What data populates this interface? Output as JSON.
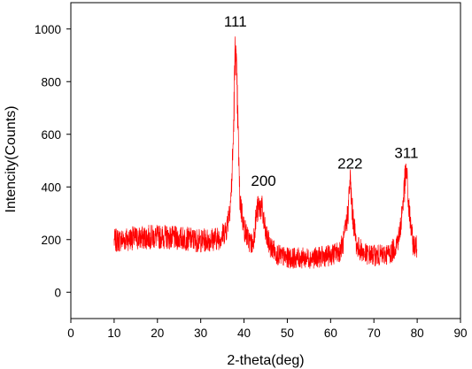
{
  "chart_data": {
    "type": "line",
    "xlabel": "2-theta(deg)",
    "ylabel": "Intencity(Counts)",
    "xlim": [
      0,
      90
    ],
    "ylim": [
      -100,
      1100
    ],
    "x_ticks": [
      0,
      10,
      20,
      30,
      40,
      50,
      60,
      70,
      80,
      90
    ],
    "y_ticks": [
      0,
      200,
      400,
      600,
      800,
      1000
    ],
    "grid": false,
    "line_color": "#ff0000",
    "series": [
      {
        "x": [
          10,
          12,
          14,
          16,
          18,
          20,
          22,
          24,
          26,
          28,
          30,
          32,
          34,
          35,
          36,
          37,
          37.5,
          38,
          38.5,
          39,
          40,
          41,
          42,
          43,
          44,
          45,
          46,
          48,
          50,
          52,
          54,
          56,
          58,
          60,
          62,
          63,
          64,
          64.5,
          65,
          66,
          68,
          70,
          72,
          74,
          75,
          76,
          77,
          77.5,
          78,
          79,
          80
        ],
        "y": [
          195,
          200,
          205,
          205,
          210,
          210,
          210,
          205,
          205,
          200,
          195,
          200,
          205,
          215,
          245,
          360,
          560,
          950,
          700,
          360,
          245,
          200,
          180,
          310,
          330,
          220,
          175,
          140,
          130,
          130,
          130,
          130,
          135,
          140,
          155,
          190,
          300,
          430,
          310,
          175,
          145,
          140,
          140,
          150,
          175,
          225,
          390,
          465,
          330,
          185,
          170
        ]
      }
    ],
    "annotations": [
      {
        "text": "111",
        "x": 38,
        "y": 1010
      },
      {
        "text": "200",
        "x": 44.5,
        "y": 405
      },
      {
        "text": "222",
        "x": 64.5,
        "y": 470
      },
      {
        "text": "311",
        "x": 77.5,
        "y": 510
      }
    ]
  }
}
